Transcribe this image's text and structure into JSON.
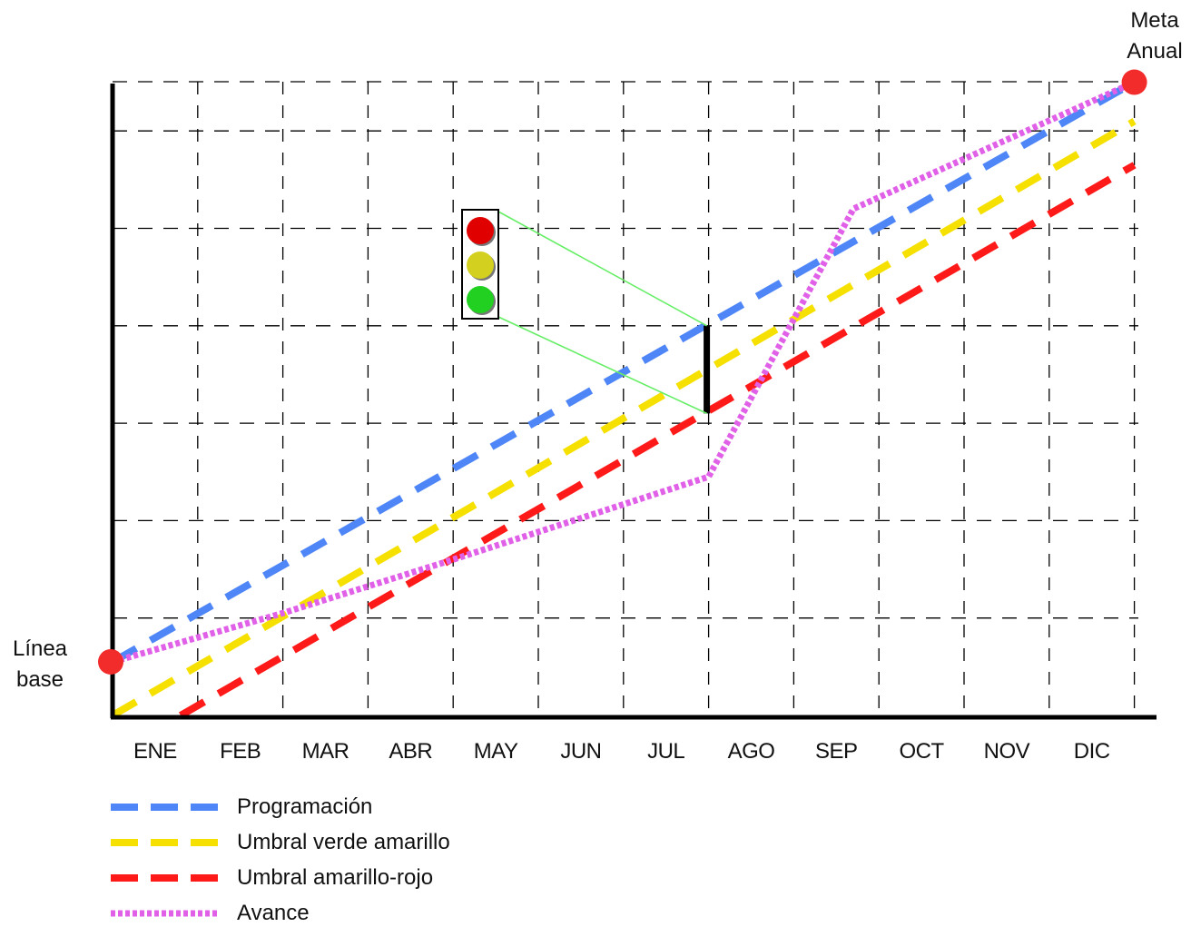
{
  "chart_data": {
    "type": "line",
    "categories": [
      "ENE",
      "FEB",
      "MAR",
      "ABR",
      "MAY",
      "JUN",
      "JUL",
      "AGO",
      "SEP",
      "OCT",
      "NOV",
      "DIC"
    ],
    "ylim": [
      0,
      6.5
    ],
    "grid": true,
    "legend_position": "bottom-left",
    "series": [
      {
        "name": "Programación",
        "color": "#4f86f7",
        "style": "dashed",
        "points": [
          [
            0,
            0.55
          ],
          [
            12,
            6.5
          ]
        ]
      },
      {
        "name": "Umbral verde amarillo",
        "color": "#f5e000",
        "style": "dashed",
        "points": [
          [
            0,
            0
          ],
          [
            12,
            6.1
          ]
        ]
      },
      {
        "name": "Umbral amarillo-rojo",
        "color": "#ff1a1a",
        "style": "dashed",
        "points": [
          [
            0.8,
            0
          ],
          [
            12,
            5.65
          ]
        ]
      },
      {
        "name": "Avance",
        "color": "#e060e8",
        "style": "dotted",
        "points": [
          [
            0,
            0.55
          ],
          [
            2,
            1.05
          ],
          [
            4,
            1.6
          ],
          [
            7,
            2.45
          ],
          [
            8.7,
            5.2
          ],
          [
            12,
            6.5
          ]
        ]
      }
    ],
    "annotations": {
      "start_label": [
        "Línea",
        "base"
      ],
      "end_label": [
        "Meta",
        "Anual"
      ],
      "start_point": [
        0,
        0.55
      ],
      "end_point": [
        12,
        6.5
      ],
      "marker_color": "#f22b2b",
      "indicator_x": 7,
      "indicator_range": [
        3.1,
        4.0
      ],
      "traffic_light_colors": [
        "#e00000",
        "#d4d020",
        "#22d022"
      ],
      "connector_color": "#66ee66"
    }
  }
}
